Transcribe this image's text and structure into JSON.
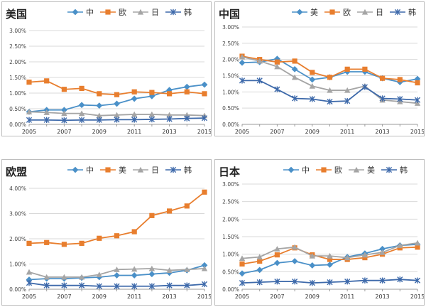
{
  "colors": {
    "blue": "#4A90C8",
    "orange": "#E87E2E",
    "gray": "#A5A5A5",
    "navy": "#3D69AA",
    "grid": "#d9d9d9"
  },
  "chart_data": [
    {
      "type": "line",
      "title": "美国",
      "categories": [
        "2005",
        "2006",
        "2007",
        "2008",
        "2009",
        "2010",
        "2011",
        "2012",
        "2013",
        "2014",
        "2015"
      ],
      "x_tick_labels": [
        "2005",
        "2007",
        "2009",
        "2011",
        "2013",
        "2015"
      ],
      "y_tick_labels": [
        "0.00%",
        "0.50%",
        "1.00%",
        "1.50%",
        "2.00%",
        "2.50%",
        "3.00%"
      ],
      "ylim": [
        0,
        3.0
      ],
      "grid": true,
      "legend": "top",
      "series": [
        {
          "name": "中",
          "marker": "diamond",
          "color": "#4A90C8",
          "values": [
            0.4,
            0.46,
            0.46,
            0.62,
            0.6,
            0.66,
            0.82,
            0.9,
            1.1,
            1.2,
            1.27
          ]
        },
        {
          "name": "欧",
          "marker": "square",
          "color": "#E87E2E",
          "values": [
            1.35,
            1.39,
            1.12,
            1.15,
            0.98,
            0.95,
            1.04,
            1.02,
            0.98,
            1.04,
            0.98
          ]
        },
        {
          "name": "日",
          "marker": "triangle",
          "color": "#A5A5A5",
          "values": [
            0.4,
            0.38,
            0.35,
            0.35,
            0.28,
            0.3,
            0.32,
            0.32,
            0.3,
            0.3,
            0.28
          ]
        },
        {
          "name": "韩",
          "marker": "star",
          "color": "#3D69AA",
          "values": [
            0.14,
            0.14,
            0.13,
            0.14,
            0.14,
            0.15,
            0.15,
            0.16,
            0.17,
            0.19,
            0.2
          ]
        }
      ]
    },
    {
      "type": "line",
      "title": "中国",
      "categories": [
        "2005",
        "2006",
        "2007",
        "2008",
        "2009",
        "2010",
        "2011",
        "2012",
        "2013",
        "2014",
        "2015"
      ],
      "x_tick_labels": [
        "2005",
        "2007",
        "2009",
        "2011",
        "2013",
        "2015"
      ],
      "y_tick_labels": [
        "0.00%",
        "0.50%",
        "1.00%",
        "1.50%",
        "2.00%",
        "2.50%",
        "3.00%"
      ],
      "ylim": [
        0,
        3.0
      ],
      "grid": true,
      "legend": "top",
      "series": [
        {
          "name": "美",
          "marker": "diamond",
          "color": "#4A90C8",
          "values": [
            1.9,
            1.92,
            2.02,
            1.7,
            1.38,
            1.45,
            1.62,
            1.62,
            1.42,
            1.3,
            1.4
          ]
        },
        {
          "name": "欧",
          "marker": "square",
          "color": "#E87E2E",
          "values": [
            2.1,
            2.0,
            1.92,
            1.95,
            1.6,
            1.45,
            1.7,
            1.7,
            1.42,
            1.38,
            1.28
          ]
        },
        {
          "name": "日",
          "marker": "triangle",
          "color": "#A5A5A5",
          "values": [
            2.08,
            1.95,
            1.78,
            1.45,
            1.18,
            1.05,
            1.05,
            1.18,
            0.75,
            0.7,
            0.65
          ]
        },
        {
          "name": "韩",
          "marker": "star",
          "color": "#3D69AA",
          "values": [
            1.35,
            1.35,
            1.08,
            0.8,
            0.78,
            0.7,
            0.72,
            1.15,
            0.8,
            0.78,
            0.75
          ]
        }
      ]
    },
    {
      "type": "line",
      "title": "欧盟",
      "categories": [
        "2005",
        "2006",
        "2007",
        "2008",
        "2009",
        "2010",
        "2011",
        "2012",
        "2013",
        "2014",
        "2015"
      ],
      "x_tick_labels": [
        "2005",
        "2007",
        "2009",
        "2011",
        "2013",
        "2015"
      ],
      "y_tick_labels": [
        "0.00%",
        "1.00%",
        "2.00%",
        "3.00%",
        "4.00%"
      ],
      "ylim": [
        0,
        4.0
      ],
      "grid": true,
      "legend": "top",
      "series": [
        {
          "name": "中",
          "marker": "diamond",
          "color": "#4A90C8",
          "values": [
            0.38,
            0.42,
            0.42,
            0.45,
            0.48,
            0.55,
            0.55,
            0.6,
            0.65,
            0.75,
            0.95
          ]
        },
        {
          "name": "美",
          "marker": "square",
          "color": "#E87E2E",
          "values": [
            1.82,
            1.85,
            1.78,
            1.82,
            2.02,
            2.12,
            2.28,
            2.92,
            3.1,
            3.3,
            3.85
          ]
        },
        {
          "name": "日",
          "marker": "triangle",
          "color": "#A5A5A5",
          "values": [
            0.68,
            0.48,
            0.48,
            0.48,
            0.58,
            0.78,
            0.8,
            0.82,
            0.75,
            0.78,
            0.82
          ]
        },
        {
          "name": "韩",
          "marker": "star",
          "color": "#3D69AA",
          "values": [
            0.25,
            0.15,
            0.15,
            0.15,
            0.12,
            0.12,
            0.12,
            0.12,
            0.15,
            0.15,
            0.2
          ]
        }
      ]
    },
    {
      "type": "line",
      "title": "日本",
      "categories": [
        "2005",
        "2006",
        "2007",
        "2008",
        "2009",
        "2010",
        "2011",
        "2012",
        "2013",
        "2014",
        "2015"
      ],
      "x_tick_labels": [
        "2005",
        "2007",
        "2009",
        "2011",
        "2013",
        "2015"
      ],
      "y_tick_labels": [
        "0.00%",
        "0.50%",
        "1.00%",
        "1.50%",
        "2.00%",
        "2.50%",
        "3.00%"
      ],
      "ylim": [
        0,
        3.0
      ],
      "grid": true,
      "legend": "top",
      "series": [
        {
          "name": "中",
          "marker": "diamond",
          "color": "#4A90C8",
          "values": [
            0.45,
            0.55,
            0.75,
            0.8,
            0.68,
            0.7,
            0.92,
            1.02,
            1.15,
            1.25,
            1.28
          ]
        },
        {
          "name": "欧",
          "marker": "square",
          "color": "#E87E2E",
          "values": [
            0.72,
            0.8,
            0.98,
            1.18,
            0.98,
            0.85,
            0.85,
            0.9,
            1.0,
            1.18,
            1.2
          ]
        },
        {
          "name": "美",
          "marker": "triangle",
          "color": "#A5A5A5",
          "values": [
            0.88,
            0.92,
            1.15,
            1.2,
            0.95,
            0.95,
            0.9,
            0.98,
            1.05,
            1.25,
            1.32
          ]
        },
        {
          "name": "韩",
          "marker": "star",
          "color": "#3D69AA",
          "values": [
            0.18,
            0.2,
            0.22,
            0.22,
            0.18,
            0.2,
            0.22,
            0.25,
            0.25,
            0.28,
            0.25
          ]
        }
      ]
    }
  ]
}
